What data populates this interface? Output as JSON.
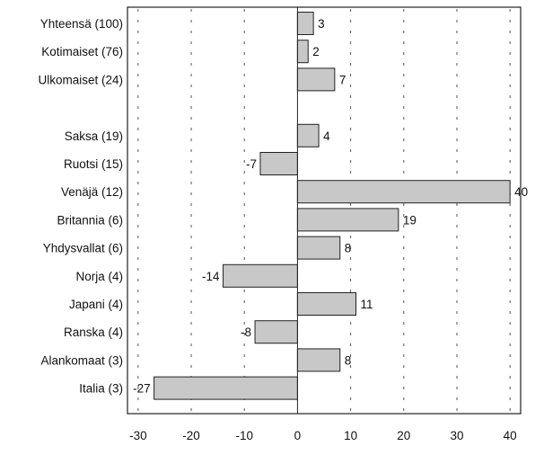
{
  "chart_data": {
    "type": "bar",
    "orientation": "horizontal",
    "title": "",
    "xlabel": "",
    "ylabel": "",
    "xlim": [
      -32,
      42
    ],
    "xticks": [
      -30,
      -20,
      -10,
      0,
      10,
      20,
      30,
      40
    ],
    "grid": "vertical dashed",
    "legend": "none",
    "bar_color": "#c8c8c8",
    "categories": [
      "Yhteensä (100)",
      "Kotimaiset (76)",
      "Ulkomaiset (24)",
      "",
      "Saksa (19)",
      "Ruotsi (15)",
      "Venäjä (12)",
      "Britannia (6)",
      "Yhdysvallat (6)",
      "Norja (4)",
      "Japani (4)",
      "Ranska (4)",
      "Alankomaat (3)",
      "Italia (3)"
    ],
    "values": [
      3,
      2,
      7,
      null,
      4,
      -7,
      40,
      19,
      8,
      -14,
      11,
      -8,
      8,
      -27
    ],
    "value_labels": [
      "3",
      "2",
      "7",
      "",
      "4",
      "-7",
      "40",
      "19",
      "8",
      "-14",
      "11",
      "-8",
      "8",
      "-27"
    ]
  }
}
